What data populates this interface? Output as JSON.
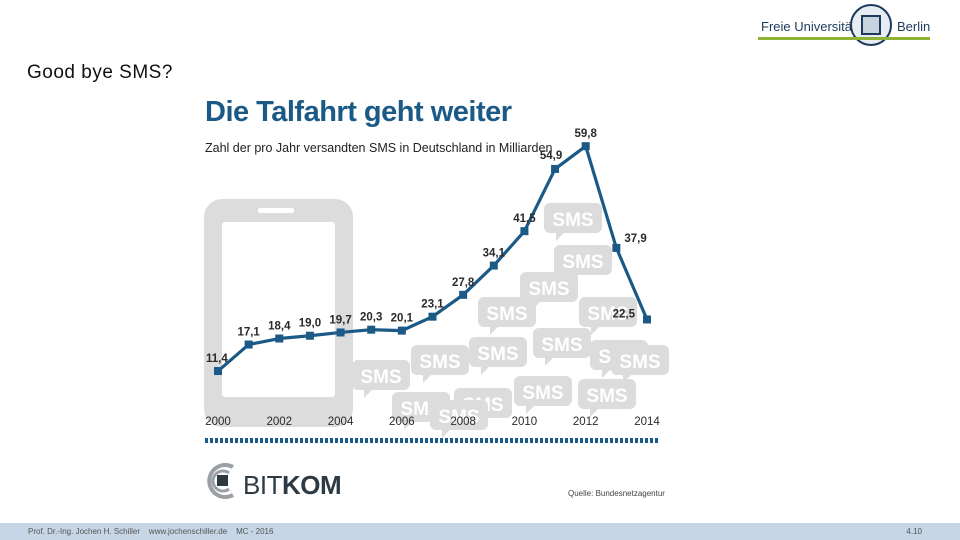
{
  "slide": {
    "title": "Good bye SMS?",
    "footer_text": "Prof. Dr.-Ing. Jochen H. Schiller    www.jochenschiller.de    MC - 2016",
    "page_number": "4.10"
  },
  "logo": {
    "left_text": "Freie Universität",
    "right_text": "Berlin"
  },
  "branding": {
    "bitkom_left": "BIT",
    "bitkom_right": "KOM",
    "source": "Quelle: Bundesnetzagentur"
  },
  "colors": {
    "line": "#1b5a86",
    "background_art": "#dcdcdc",
    "accent_green": "#8fb335"
  },
  "chart_data": {
    "type": "line",
    "title": "Die Talfahrt geht weiter",
    "subtitle": "Zahl der pro Jahr versandten SMS in Deutschland in Milliarden",
    "x": [
      2000,
      2001,
      2002,
      2003,
      2004,
      2005,
      2006,
      2007,
      2008,
      2009,
      2010,
      2011,
      2012,
      2013,
      2014
    ],
    "values": [
      11.4,
      17.1,
      18.4,
      19.0,
      19.7,
      20.3,
      20.1,
      23.1,
      27.8,
      34.1,
      41.5,
      54.9,
      59.8,
      37.9,
      22.5
    ],
    "value_labels": [
      "11,4",
      "17,1",
      "18,4",
      "19,0",
      "19,7",
      "20,3",
      "20,1",
      "23,1",
      "27,8",
      "34,1",
      "41,5",
      "54,9",
      "59,8",
      "37,9",
      "22,5"
    ],
    "x_tick_labels": [
      "2000",
      "2002",
      "2004",
      "2006",
      "2008",
      "2010",
      "2012",
      "2014"
    ],
    "xlabel": "",
    "ylabel": "",
    "ylim": [
      0,
      65
    ],
    "grid": false,
    "background_words": [
      "SMS",
      "SMS",
      "SMS",
      "SMS",
      "SMS",
      "SMS",
      "SMS",
      "SMS",
      "SMS",
      "SMS",
      "SMS",
      "SMS",
      "SMS",
      "SMS",
      "SMS",
      "SMS"
    ]
  }
}
